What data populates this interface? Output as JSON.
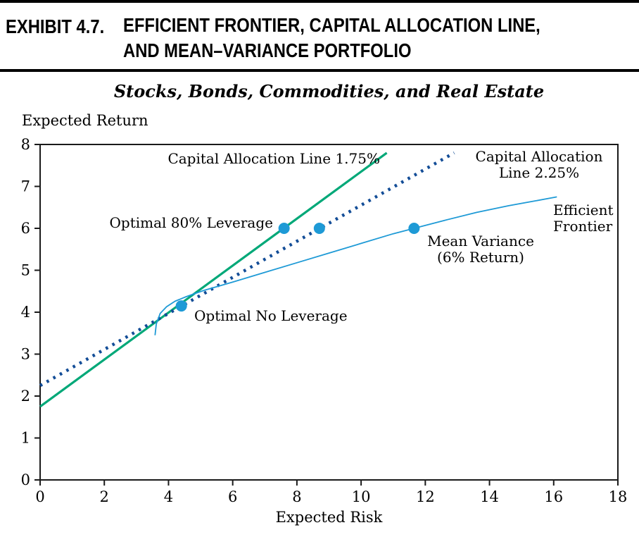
{
  "header": {
    "exhibit_label": "EXHIBIT 4.7.",
    "title_line1": "EFFICIENT FRONTIER, CAPITAL ALLOCATION LINE,",
    "title_line2": "AND MEAN–VARIANCE PORTFOLIO"
  },
  "chart_data": {
    "type": "line",
    "title": "Stocks, Bonds, Commodities, and Real Estate",
    "xlabel": "Expected Risk",
    "ylabel": "Expected Return",
    "xlim": [
      0,
      18
    ],
    "ylim": [
      0,
      8
    ],
    "x_ticks": [
      0,
      2,
      4,
      6,
      8,
      10,
      12,
      14,
      16,
      18
    ],
    "y_ticks": [
      0,
      1,
      2,
      3,
      4,
      5,
      6,
      7,
      8
    ],
    "grid": false,
    "legend_position": "none (inline annotations)",
    "colors": {
      "cal_175": "#00a878",
      "cal_225": "#134d97",
      "efficient_frontier": "#1e9ad6",
      "markers": "#1e9ad6",
      "axis": "#1a1a1a"
    },
    "series": [
      {
        "name": "Capital Allocation Line 1.75%",
        "style": "solid",
        "color": "#00a878",
        "width": 3.2,
        "points": [
          [
            0,
            1.75
          ],
          [
            10.8,
            7.8
          ]
        ]
      },
      {
        "name": "Capital Allocation Line 2.25%",
        "style": "dotted",
        "color": "#134d97",
        "width": 4.5,
        "points": [
          [
            0,
            2.25
          ],
          [
            12.9,
            7.8
          ]
        ]
      },
      {
        "name": "Efficient Frontier",
        "style": "solid",
        "color": "#1e9ad6",
        "width": 1.8,
        "points": [
          [
            3.58,
            3.45
          ],
          [
            3.62,
            3.72
          ],
          [
            3.74,
            3.97
          ],
          [
            3.94,
            4.13
          ],
          [
            4.2,
            4.26
          ],
          [
            4.55,
            4.37
          ],
          [
            5.1,
            4.52
          ],
          [
            6,
            4.72
          ],
          [
            7,
            4.95
          ],
          [
            8,
            5.18
          ],
          [
            9,
            5.41
          ],
          [
            10,
            5.64
          ],
          [
            11,
            5.87
          ],
          [
            11.65,
            6.0
          ],
          [
            12.6,
            6.19
          ],
          [
            13.6,
            6.38
          ],
          [
            14.6,
            6.54
          ],
          [
            15.4,
            6.65
          ],
          [
            16.1,
            6.75
          ]
        ]
      }
    ],
    "markers": {
      "color": "#1e9ad6",
      "radius": 8,
      "points": [
        {
          "x": 7.6,
          "y": 6.0,
          "meaning": "Optimal 80% Leverage (on CAL 1.75%)"
        },
        {
          "x": 8.7,
          "y": 6.0,
          "meaning": "6% return point on CAL 2.25%"
        },
        {
          "x": 11.65,
          "y": 6.0,
          "meaning": "Mean Variance (6% Return) on frontier"
        },
        {
          "x": 4.4,
          "y": 4.15,
          "meaning": "Optimal No Leverage tangency point"
        }
      ]
    },
    "annotations": [
      {
        "id": "cal175",
        "text": "Capital Allocation Line 1.75%",
        "anchor_data_xy": [
          10.0,
          7.6
        ]
      },
      {
        "id": "cal225",
        "text": "Capital Allocation\nLine 2.25%",
        "anchor_data_xy": [
          14.3,
          7.4
        ]
      },
      {
        "id": "efficient-frontier",
        "text": "Efficient\nFrontier",
        "anchor_data_xy": [
          16.6,
          6.3
        ]
      },
      {
        "id": "mean-variance",
        "text": "Mean Variance\n(6% Return)",
        "anchor_data_xy": [
          13.8,
          5.6
        ]
      },
      {
        "id": "optimal-80",
        "text": "Optimal 80% Leverage",
        "anchor_data_xy": [
          6.9,
          6.0
        ]
      },
      {
        "id": "optimal-no",
        "text": "Optimal No Leverage",
        "anchor_data_xy": [
          4.8,
          4.05
        ]
      }
    ]
  }
}
